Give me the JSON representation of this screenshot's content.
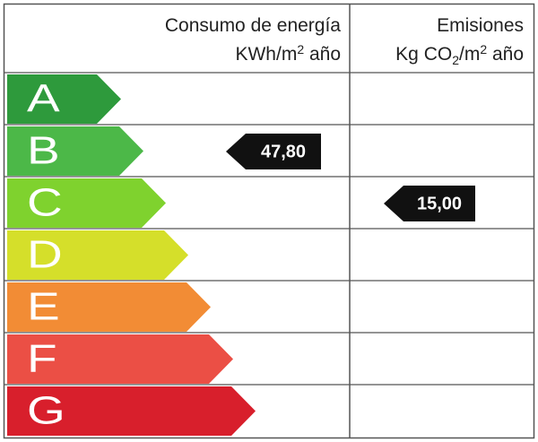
{
  "header": {
    "energy_title": "Consumo de energía",
    "energy_unit": [
      "KWh/m",
      "2",
      " año"
    ],
    "emissions_title": "Emisiones",
    "emissions_unit": [
      "Kg CO",
      "2",
      "/m",
      "2",
      " año"
    ]
  },
  "ratings": [
    {
      "letter": "A",
      "color": "#2e9a3c"
    },
    {
      "letter": "B",
      "color": "#4cb848"
    },
    {
      "letter": "C",
      "color": "#7fd22e"
    },
    {
      "letter": "D",
      "color": "#d5df2a"
    },
    {
      "letter": "E",
      "color": "#f28c35"
    },
    {
      "letter": "F",
      "color": "#eb4f45"
    },
    {
      "letter": "G",
      "color": "#d81f2c"
    }
  ],
  "indicators": {
    "energy": {
      "label": "47,80",
      "rating": "B"
    },
    "emissions": {
      "label": "15,00",
      "rating": "C"
    }
  }
}
